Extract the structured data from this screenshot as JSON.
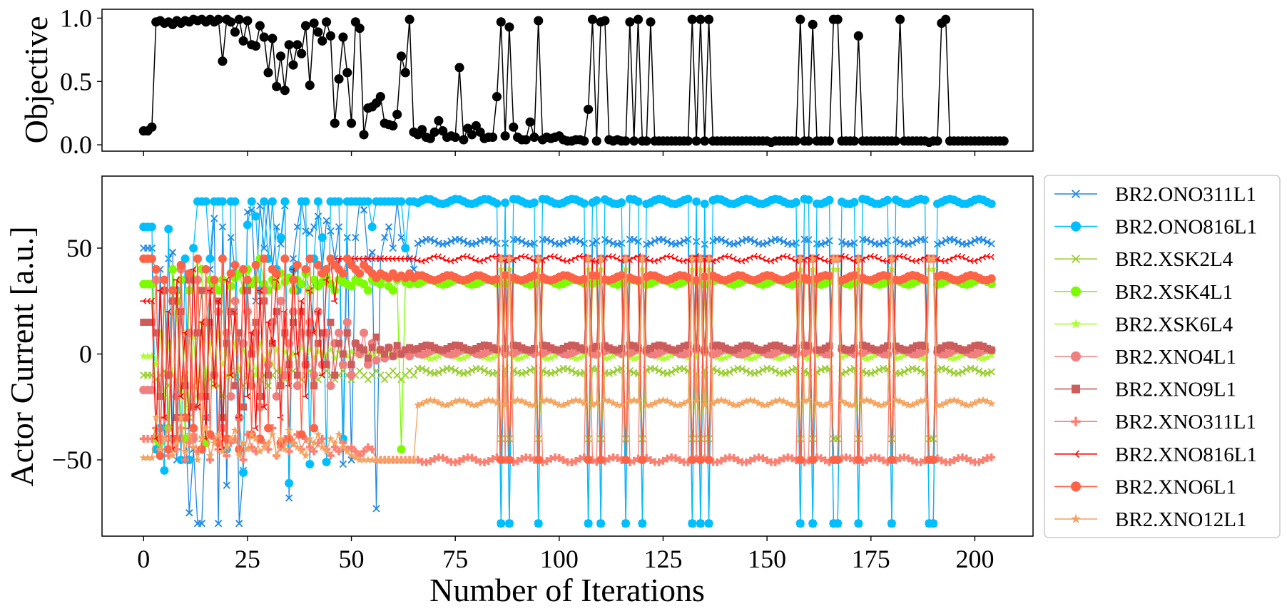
{
  "chart_data": [
    {
      "type": "line",
      "panel": "top",
      "ylabel": "Objective",
      "xlabel": "",
      "xlim": [
        -10,
        214
      ],
      "ylim": [
        -0.05,
        1.07
      ],
      "xticks": [
        0,
        25,
        50,
        75,
        100,
        125,
        150,
        175,
        200
      ],
      "yticks": [
        0.0,
        0.5,
        1.0
      ],
      "ytick_labels": [
        "0.0",
        "0.5",
        "1.0"
      ],
      "grid": false,
      "series": [
        {
          "color": "#000000",
          "marker": "circle",
          "x_start": 0,
          "values": [
            0.11,
            0.11,
            0.14,
            0.97,
            0.98,
            0.96,
            0.97,
            0.95,
            0.98,
            0.96,
            0.98,
            0.97,
            0.99,
            0.98,
            0.99,
            0.97,
            0.99,
            0.97,
            0.99,
            0.66,
            0.99,
            0.97,
            0.89,
            0.99,
            0.82,
            0.98,
            0.79,
            0.78,
            0.94,
            0.85,
            0.57,
            0.84,
            0.46,
            0.7,
            0.43,
            0.79,
            0.63,
            0.79,
            0.72,
            0.94,
            0.47,
            0.96,
            0.89,
            0.82,
            0.97,
            0.86,
            0.17,
            0.52,
            0.85,
            0.57,
            0.17,
            0.97,
            0.92,
            0.08,
            0.29,
            0.3,
            0.33,
            0.38,
            0.17,
            0.16,
            0.15,
            0.24,
            0.7,
            0.57,
            0.99,
            0.1,
            0.08,
            0.12,
            0.06,
            0.05,
            0.1,
            0.19,
            0.11,
            0.06,
            0.07,
            0.06,
            0.61,
            0.04,
            0.13,
            0.08,
            0.15,
            0.1,
            0.05,
            0.06,
            0.06,
            0.38,
            0.97,
            0.07,
            0.93,
            0.14,
            0.06,
            0.04,
            0.04,
            0.18,
            0.06,
            0.98,
            0.04,
            0.06,
            0.05,
            0.06,
            0.07,
            0.04,
            0.03,
            0.03,
            0.04,
            0.04,
            0.03,
            0.28,
            0.99,
            0.03,
            0.97,
            0.98,
            0.04,
            0.03,
            0.04,
            0.03,
            0.03,
            0.97,
            0.03,
            0.99,
            0.03,
            0.03,
            0.97,
            0.03,
            0.03,
            0.03,
            0.03,
            0.03,
            0.03,
            0.03,
            0.03,
            0.03,
            0.99,
            0.03,
            0.99,
            0.03,
            0.99,
            0.03,
            0.03,
            0.03,
            0.03,
            0.03,
            0.03,
            0.03,
            0.03,
            0.03,
            0.03,
            0.03,
            0.03,
            0.03,
            0.03,
            0.02,
            0.03,
            0.03,
            0.03,
            0.03,
            0.03,
            0.03,
            0.99,
            0.03,
            0.03,
            0.95,
            0.03,
            0.03,
            0.03,
            0.03,
            0.99,
            0.99,
            0.03,
            0.03,
            0.03,
            0.03,
            0.86,
            0.03,
            0.03,
            0.03,
            0.03,
            0.03,
            0.03,
            0.03,
            0.03,
            0.03,
            0.99,
            0.03,
            0.03,
            0.03,
            0.03,
            0.03,
            0.03,
            0.02,
            0.03,
            0.03,
            0.96,
            0.99,
            0.03,
            0.03,
            0.03,
            0.03,
            0.03,
            0.03,
            0.03,
            0.03,
            0.03,
            0.03,
            0.03,
            0.03,
            0.03,
            0.03
          ]
        }
      ]
    },
    {
      "type": "line",
      "panel": "bottom",
      "xlabel": "Number of Iterations",
      "ylabel": "Actor Current [a.u.]",
      "xlim": [
        -10,
        214
      ],
      "ylim": [
        -86,
        84
      ],
      "xticks": [
        0,
        25,
        50,
        75,
        100,
        125,
        150,
        175,
        200
      ],
      "xtick_labels": [
        "0",
        "25",
        "50",
        "75",
        "100",
        "125",
        "150",
        "175",
        "200"
      ],
      "yticks": [
        -50,
        0,
        50
      ],
      "ytick_labels": [
        "−50",
        "0",
        "50"
      ],
      "grid": false,
      "legend_position": "outside-right",
      "num_points": 205,
      "series": [
        {
          "name": "BR2.ONO311L1",
          "color": "#1e88e5",
          "marker": "x",
          "plateau": 53,
          "early": [
            50,
            50,
            50,
            -45,
            40,
            -40,
            45,
            48,
            -50,
            35,
            -30,
            -75,
            -45,
            -80,
            -80,
            -30,
            40,
            64,
            -80,
            60,
            -62,
            55,
            40,
            -80,
            -55,
            67,
            68,
            25,
            70,
            50,
            72,
            40,
            60,
            52,
            70,
            -68,
            45,
            60,
            72,
            58,
            57,
            60,
            65,
            40,
            63,
            58,
            45,
            60,
            -52,
            55,
            -50,
            55,
            72,
            68,
            45,
            48,
            -73,
            45,
            55,
            60,
            50,
            72,
            55,
            50,
            45,
            40
          ]
        },
        {
          "name": "BR2.ONO816L1",
          "color": "#00bfff",
          "marker": "circle",
          "plateau": 72,
          "early": [
            60,
            60,
            60,
            -45,
            -35,
            -55,
            59,
            -40,
            30,
            -50,
            45,
            -50,
            50,
            72,
            72,
            72,
            45,
            72,
            72,
            72,
            -45,
            72,
            72,
            -30,
            -56,
            61,
            72,
            65,
            30,
            72,
            45,
            72,
            40,
            55,
            72,
            -61,
            40,
            30,
            72,
            72,
            -52,
            45,
            72,
            55,
            -51,
            72,
            72,
            72,
            -40,
            72,
            72,
            72,
            72,
            72,
            72,
            60,
            72,
            72,
            72,
            72,
            72,
            72,
            72,
            50,
            72,
            72
          ]
        },
        {
          "name": "BR2.XSK2L4",
          "color": "#9acd32",
          "marker": "x",
          "plateau": -8,
          "early": [
            -10,
            -10,
            -10,
            -12,
            -10,
            -8,
            -15,
            -10,
            -12,
            -20,
            -10,
            -30,
            -15,
            -12,
            -40,
            -10,
            -12,
            -10,
            -15,
            -20,
            -10,
            -8,
            -10,
            -12,
            -15,
            -10,
            -8,
            -10,
            -12,
            -10,
            -15,
            -10,
            -8,
            -10,
            -12,
            -10,
            -8,
            -10,
            -12,
            -10,
            -8,
            -10,
            -12,
            -10,
            -8,
            -10,
            -12,
            -10,
            -8,
            -10,
            -12,
            -10,
            -8,
            -10,
            -12,
            -10,
            -8,
            -10,
            -12,
            -10,
            -8,
            -10,
            -12,
            -10,
            -8,
            -10
          ]
        },
        {
          "name": "BR2.XSK4L1",
          "color": "#7cfc00",
          "marker": "circle",
          "plateau": 34,
          "early": [
            33,
            33,
            33,
            -40,
            -42,
            30,
            -35,
            40,
            25,
            35,
            -40,
            30,
            35,
            45,
            40,
            -42,
            35,
            33,
            30,
            35,
            -40,
            32,
            36,
            38,
            30,
            40,
            33,
            35,
            45,
            33,
            30,
            35,
            32,
            38,
            34,
            36,
            30,
            35,
            33,
            38,
            30,
            35,
            32,
            34,
            36,
            33,
            30,
            35,
            34,
            33,
            32,
            35,
            34,
            33,
            30,
            35,
            34,
            33,
            36,
            32,
            30,
            35,
            -45,
            34,
            33,
            35
          ]
        },
        {
          "name": "BR2.XSK6L4",
          "color": "#adff2f",
          "marker": "star",
          "plateau": -1,
          "early": [
            -1,
            -1,
            -1,
            -5,
            10,
            -20,
            5,
            -10,
            20,
            -30,
            10,
            -25,
            8,
            -20,
            15,
            -10,
            5,
            -15,
            10,
            -5,
            0,
            -10,
            5,
            -8,
            2,
            -5,
            3,
            -10,
            5,
            -3,
            0,
            -5,
            2,
            -8,
            1,
            -2,
            0,
            -4,
            3,
            -1,
            2,
            -2,
            1,
            0,
            -1,
            2,
            -2,
            1,
            0,
            -1,
            1,
            0,
            -1,
            1,
            0,
            -1,
            1,
            0,
            -1,
            1,
            0,
            -1,
            1,
            0,
            -1,
            1
          ]
        },
        {
          "name": "BR2.XNO4L1",
          "color": "#f08080",
          "marker": "circle",
          "plateau": 1,
          "early": [
            -17,
            -17,
            -17,
            35,
            -40,
            30,
            -10,
            25,
            -20,
            40,
            -30,
            10,
            -40,
            35,
            -20,
            15,
            30,
            -10,
            20,
            -35,
            10,
            -20,
            25,
            -30,
            5,
            20,
            -15,
            10,
            -25,
            30,
            -5,
            15,
            -20,
            25,
            -10,
            5,
            20,
            -15,
            10,
            -5,
            15,
            -10,
            20,
            -5,
            10,
            -15,
            5,
            10,
            -5,
            15,
            -10,
            5,
            0,
            10,
            -5,
            5,
            -3,
            2,
            -2,
            3,
            -1,
            2,
            0,
            1,
            -1,
            2
          ]
        },
        {
          "name": "BR2.XNO9L1",
          "color": "#cd5c5c",
          "marker": "square",
          "plateau": 3,
          "early": [
            15,
            15,
            15,
            10,
            -20,
            30,
            -10,
            25,
            -30,
            20,
            -15,
            35,
            -25,
            10,
            30,
            -20,
            15,
            -10,
            25,
            -30,
            5,
            20,
            -15,
            10,
            -25,
            30,
            0,
            15,
            -20,
            25,
            -10,
            5,
            20,
            -15,
            10,
            -5,
            15,
            -10,
            20,
            -5,
            10,
            -15,
            5,
            10,
            -5,
            15,
            -10,
            5,
            0,
            10,
            -5,
            5,
            3,
            2,
            -2,
            3,
            8,
            2,
            0,
            3,
            -1,
            4,
            0,
            2,
            3,
            2
          ]
        },
        {
          "name": "BR2.XNO311L1",
          "color": "#fa8072",
          "marker": "plus",
          "plateau": -50,
          "early": [
            -40,
            -40,
            -40,
            -35,
            -45,
            -30,
            -48,
            -40,
            -45,
            -35,
            -50,
            -42,
            -38,
            -46,
            -44,
            -30,
            -50,
            -40,
            -45,
            -35,
            -48,
            -42,
            -40,
            -45,
            -50,
            -38,
            -44,
            -46,
            -40,
            -42,
            -45,
            -35,
            -48,
            -44,
            -40,
            -46,
            -42,
            -38,
            -45,
            -40,
            -44,
            -46,
            -42,
            -40,
            -45,
            -48,
            -44,
            -46,
            -42,
            -45,
            -44,
            -46,
            -48,
            -46,
            -44,
            -45,
            -50,
            -50,
            -50,
            -50,
            -50,
            -50,
            -50,
            -50,
            -50,
            -50
          ]
        },
        {
          "name": "BR2.XNO816L1",
          "color": "#ff0000",
          "marker": "tri_left",
          "plateau": 45,
          "early": [
            25,
            25,
            25,
            -40,
            30,
            -30,
            20,
            -45,
            35,
            -20,
            10,
            -35,
            40,
            -25,
            15,
            -40,
            30,
            -15,
            25,
            -45,
            35,
            -10,
            20,
            -30,
            40,
            -20,
            10,
            -35,
            30,
            -25,
            15,
            5,
            35,
            -30,
            20,
            -15,
            40,
            0,
            25,
            -20,
            30,
            10,
            20,
            -10,
            35,
            45,
            25,
            45,
            45,
            45,
            45,
            45,
            45,
            45,
            45,
            45,
            45,
            45,
            45,
            45,
            45,
            45,
            45,
            45,
            45,
            45
          ]
        },
        {
          "name": "BR2.XNO6L1",
          "color": "#ff6347",
          "marker": "circle",
          "plateau": 36,
          "early": [
            45,
            45,
            45,
            40,
            -48,
            35,
            -45,
            30,
            -40,
            42,
            -30,
            38,
            -35,
            45,
            -45,
            40,
            -38,
            35,
            -42,
            45,
            -40,
            38,
            42,
            -45,
            40,
            35,
            -38,
            42,
            -40,
            45,
            -35,
            40,
            38,
            -42,
            45,
            -40,
            35,
            42,
            -38,
            40,
            45,
            -35,
            42,
            38,
            40,
            45,
            42,
            40,
            38,
            45,
            42,
            40,
            38,
            42,
            40,
            38,
            36,
            38,
            37,
            36,
            38,
            36,
            37,
            36,
            38,
            36
          ]
        },
        {
          "name": "BR2.XNO12L1",
          "color": "#f4a460",
          "marker": "star",
          "plateau": -23,
          "early": [
            -49,
            -49,
            -49,
            -30,
            -45,
            -40,
            -35,
            -48,
            -42,
            -30,
            -46,
            -38,
            -44,
            -50,
            -40,
            -35,
            -48,
            -42,
            -38,
            -46,
            -44,
            -40,
            -36,
            -48,
            -42,
            -45,
            -38,
            -40,
            -46,
            -44,
            -42,
            -38,
            -48,
            -40,
            -45,
            -36,
            -42,
            -44,
            -46,
            -48,
            -40,
            -42,
            -38,
            -44,
            -46,
            -40,
            -42,
            -38,
            -44,
            -46,
            -48,
            -49,
            -50,
            -50,
            -50,
            -50,
            -50,
            -50,
            -50,
            -50,
            -50,
            -50,
            -50,
            -50,
            -50,
            -50
          ]
        }
      ]
    }
  ]
}
